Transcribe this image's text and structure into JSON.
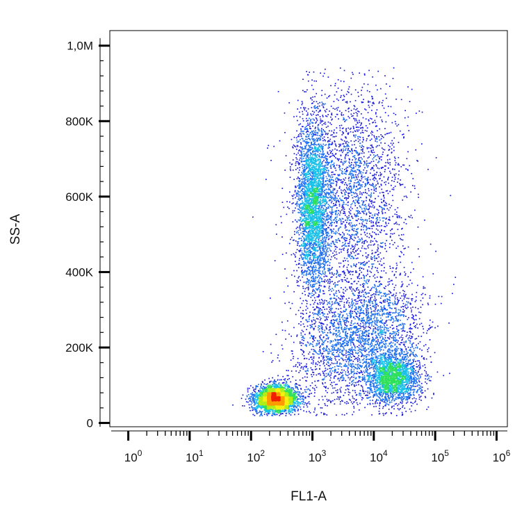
{
  "chart_data": {
    "type": "scatter",
    "subtype": "flow-cytometry-density-dot-plot",
    "xlabel": "FL1-A",
    "ylabel": "SS-A",
    "x_scale": "log",
    "x_range": [
      0.5,
      1500000
    ],
    "y_scale": "linear",
    "y_range": [
      -10000,
      1040000
    ],
    "x_ticks": [
      {
        "value": 1,
        "base": "10",
        "exp": "0"
      },
      {
        "value": 10,
        "base": "10",
        "exp": "1"
      },
      {
        "value": 100,
        "base": "10",
        "exp": "2"
      },
      {
        "value": 1000,
        "base": "10",
        "exp": "3"
      },
      {
        "value": 10000,
        "base": "10",
        "exp": "4"
      },
      {
        "value": 100000,
        "base": "10",
        "exp": "5"
      },
      {
        "value": 1000000,
        "base": "10",
        "exp": "6"
      }
    ],
    "y_ticks": [
      {
        "value": 0,
        "label": "0"
      },
      {
        "value": 200000,
        "label": "200K"
      },
      {
        "value": 400000,
        "label": "400K"
      },
      {
        "value": 600000,
        "label": "600K"
      },
      {
        "value": 800000,
        "label": "800K"
      },
      {
        "value": 1000000,
        "label": "1,0M"
      }
    ],
    "populations": [
      {
        "x_center": 250,
        "y_center": 65000,
        "x_spread_log": 0.17,
        "y_spread": 18000,
        "count": 3200
      },
      {
        "x_center": 1000,
        "y_center": 580000,
        "x_spread_log": 0.13,
        "y_spread": 110000,
        "count": 3000
      },
      {
        "x_center": 4000,
        "y_center": 600000,
        "x_spread_log": 0.45,
        "y_spread": 150000,
        "count": 2600
      },
      {
        "x_center": 20000,
        "y_center": 120000,
        "x_spread_log": 0.22,
        "y_spread": 35000,
        "count": 2200
      },
      {
        "x_center": 12000,
        "y_center": 260000,
        "x_spread_log": 0.38,
        "y_spread": 65000,
        "count": 1200
      },
      {
        "x_center": 2500,
        "y_center": 190000,
        "x_spread_log": 0.4,
        "y_spread": 80000,
        "count": 1400
      }
    ],
    "density_colors": [
      "#1a1adf",
      "#1d6ff2",
      "#19c0e8",
      "#2fe05a",
      "#b0ee14",
      "#f7ef12",
      "#ff9a00",
      "#f21d00"
    ],
    "grid": false,
    "legend": "none"
  }
}
